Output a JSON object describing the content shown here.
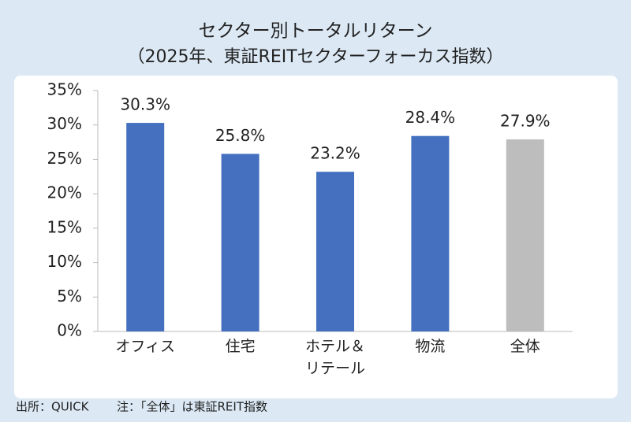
{
  "chart_data": {
    "type": "bar",
    "title": "セクター別トータルリターン",
    "subtitle": "（2025年、東証REITセクターフォーカス指数）",
    "categories": [
      "オフィス",
      "住宅",
      "ホテル＆\nリテール",
      "物流",
      "全体"
    ],
    "values": [
      30.3,
      25.8,
      23.2,
      28.4,
      27.9
    ],
    "value_labels": [
      "30.3%",
      "25.8%",
      "23.2%",
      "28.4%",
      "27.9%"
    ],
    "colors": [
      "#4470bf",
      "#4470bf",
      "#4470bf",
      "#4470bf",
      "#bdbdbd"
    ],
    "ylim": [
      0,
      35
    ],
    "yticks": [
      {
        "value": 0,
        "label": "0%"
      },
      {
        "value": 5,
        "label": "5%"
      },
      {
        "value": 10,
        "label": "10%"
      },
      {
        "value": 15,
        "label": "15%"
      },
      {
        "value": 20,
        "label": "20%"
      },
      {
        "value": 25,
        "label": "25%"
      },
      {
        "value": 30,
        "label": "30%"
      },
      {
        "value": 35,
        "label": "35%"
      }
    ],
    "grid": false,
    "source": "出所：QUICK",
    "note": "注：「全体」は東証REIT指数"
  }
}
